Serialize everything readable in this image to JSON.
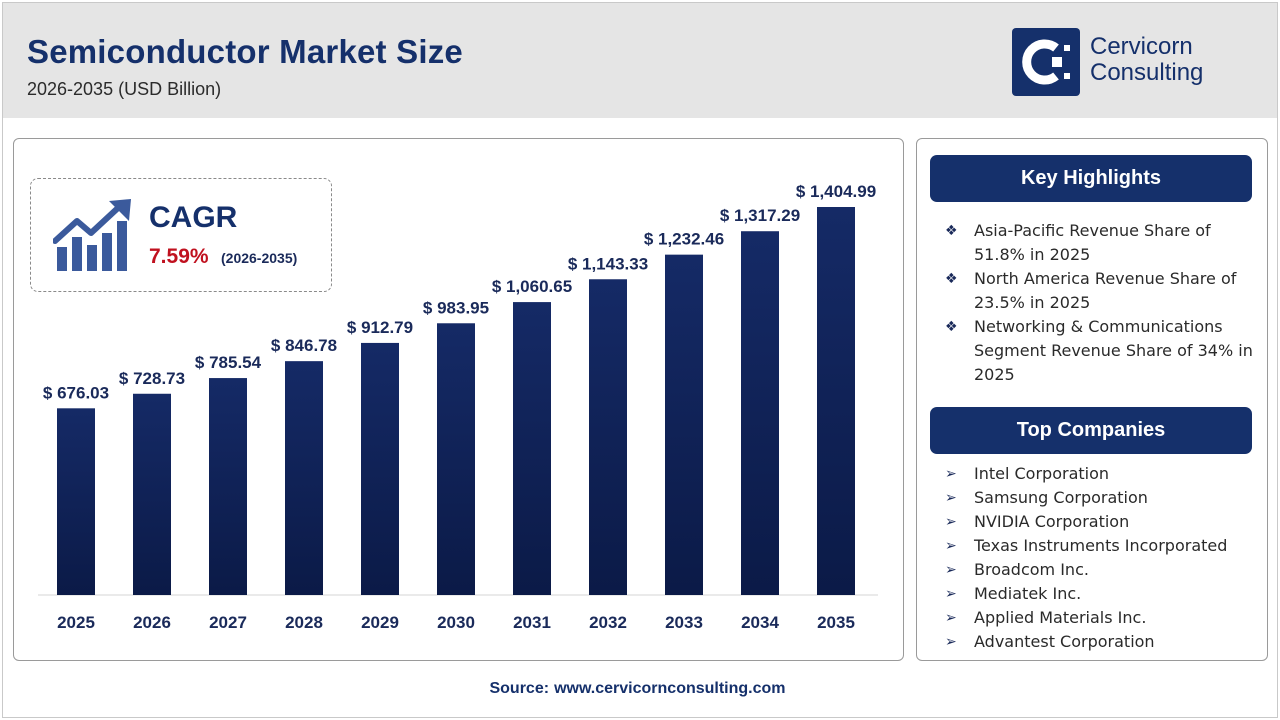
{
  "header": {
    "title": "Semiconductor Market Size",
    "subtitle": "2026-2035 (USD Billion)"
  },
  "logo": {
    "line1": "Cervicorn",
    "line2": "Consulting"
  },
  "cagr": {
    "label": "CAGR",
    "value": "7.59%",
    "period": "(2026-2035)"
  },
  "chart_data": {
    "type": "bar",
    "categories": [
      "2025",
      "2026",
      "2027",
      "2028",
      "2029",
      "2030",
      "2031",
      "2032",
      "2033",
      "2034",
      "2035"
    ],
    "values": [
      676.03,
      728.73,
      785.54,
      846.78,
      912.79,
      983.95,
      1060.65,
      1143.33,
      1232.46,
      1317.29,
      1404.99
    ],
    "data_labels": [
      "$ 676.03",
      "$ 728.73",
      "$ 785.54",
      "$ 846.78",
      "$ 912.79",
      "$ 983.95",
      "$ 1,060.65",
      "$ 1,143.33",
      "$ 1,232.46",
      "$ 1,317.29",
      "$ 1,404.99"
    ],
    "title": "Semiconductor Market Size",
    "xlabel": "",
    "ylabel": "",
    "grid": false,
    "colors": {
      "bar_top": "#152a66",
      "bar_bottom": "#0b1a47"
    }
  },
  "key_highlights": {
    "heading": "Key Highlights",
    "items": [
      "Asia-Pacific Revenue Share of 51.8% in 2025",
      "North America Revenue Share of 23.5% in 2025",
      "Networking & Communications Segment Revenue Share of 34% in 2025"
    ]
  },
  "top_companies": {
    "heading": "Top Companies",
    "items": [
      "Intel Corporation",
      "Samsung Corporation",
      "NVIDIA Corporation",
      "Texas Instruments Incorporated",
      "Broadcom Inc.",
      "Mediatek Inc.",
      "Applied Materials Inc.",
      "Advantest Corporation"
    ]
  },
  "source": {
    "label": "Source:",
    "url": "www.cervicornconsulting.com"
  },
  "colors": {
    "brand": "#15306b",
    "accent_red": "#c0111f",
    "header_bg": "#e5e5e5"
  }
}
